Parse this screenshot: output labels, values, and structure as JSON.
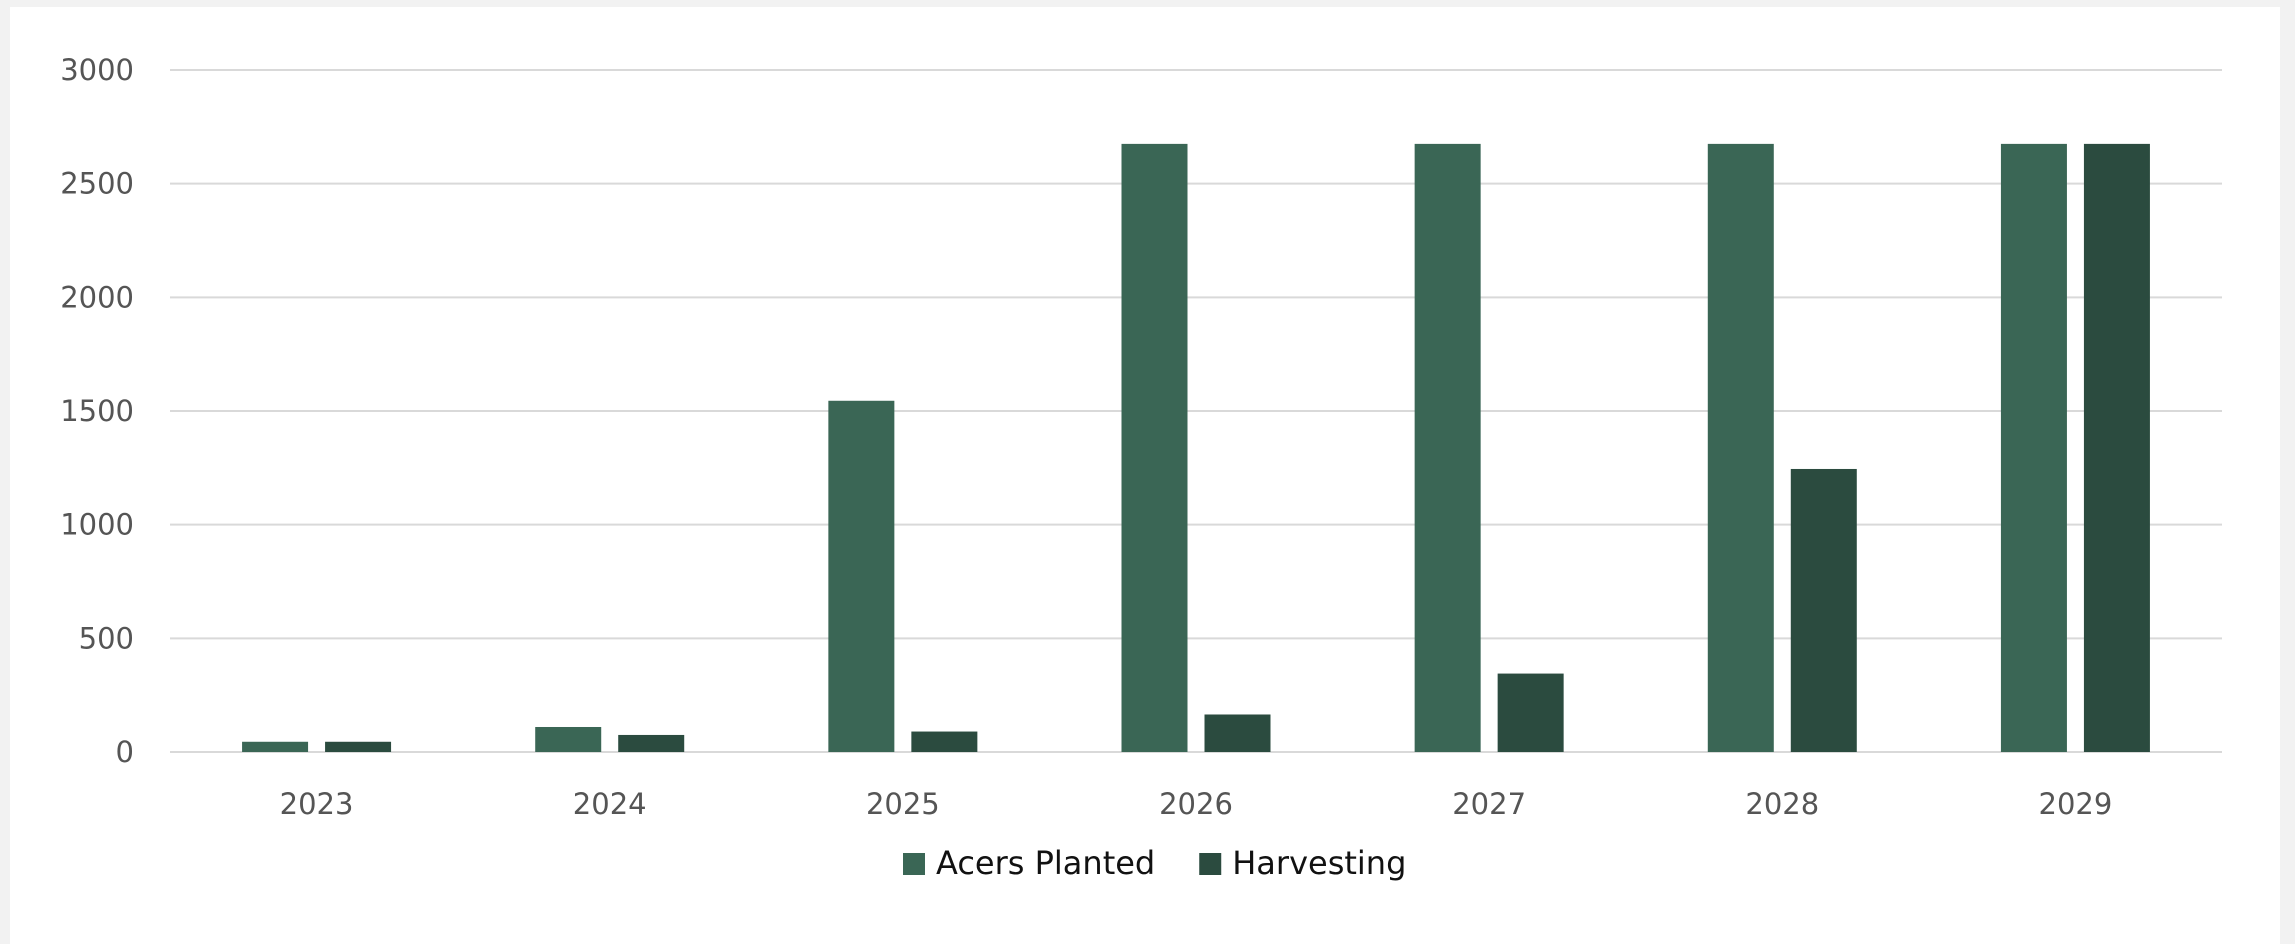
{
  "chart_data": {
    "type": "bar",
    "categories": [
      "2023",
      "2024",
      "2025",
      "2026",
      "2027",
      "2028",
      "2029"
    ],
    "series": [
      {
        "name": "Acers Planted",
        "color": "#3a6655",
        "values": [
          45,
          110,
          1545,
          2675,
          2675,
          2675,
          2675
        ]
      },
      {
        "name": "Harvesting",
        "color": "#2b4b3f",
        "values": [
          45,
          75,
          90,
          165,
          345,
          1245,
          2675
        ]
      }
    ],
    "yticks": [
      "0",
      "500",
      "1000",
      "1500",
      "2000",
      "2500",
      "3000"
    ],
    "ylim": [
      0,
      3000
    ],
    "grid": true,
    "gridColor": "#d9d9d9",
    "legend": "bottom-center"
  }
}
